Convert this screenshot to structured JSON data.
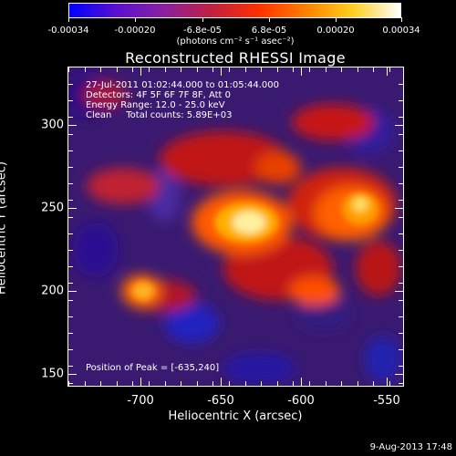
{
  "colorbar": {
    "tick_labels": [
      "-0.00034",
      "-0.00020",
      "-6.8e-05",
      "6.8e-05",
      "0.00020",
      "0.00034"
    ],
    "unit_label": "(photons cm⁻² s⁻¹ asec⁻²)",
    "colors": [
      "#0000ff",
      "#5a10d0",
      "#8a20a0",
      "#c02040",
      "#ff3000",
      "#ff8000",
      "#ffd020",
      "#ffffff"
    ]
  },
  "title": "Reconstructed RHESSI Image",
  "info": {
    "time_range": "27-Jul-2011 01:02:44.000 to 01:05:44.000",
    "detectors": "Detectors: 4F 5F 6F 7F 8F, Att 0",
    "energy": "Energy Range: 12.0 - 25.0 keV",
    "clean": "Clean     Total counts: 5.89E+03"
  },
  "peak": "Position of Peak = [-635,240]",
  "axes": {
    "xlabel": "Heliocentric X (arcsec)",
    "ylabel": "Heliocentric Y (arcsec)",
    "xticks": [
      "-700",
      "-650",
      "-600",
      "-550"
    ],
    "yticks": [
      "300",
      "250",
      "200",
      "150"
    ]
  },
  "footer_date": "9-Aug-2013 17:48"
}
